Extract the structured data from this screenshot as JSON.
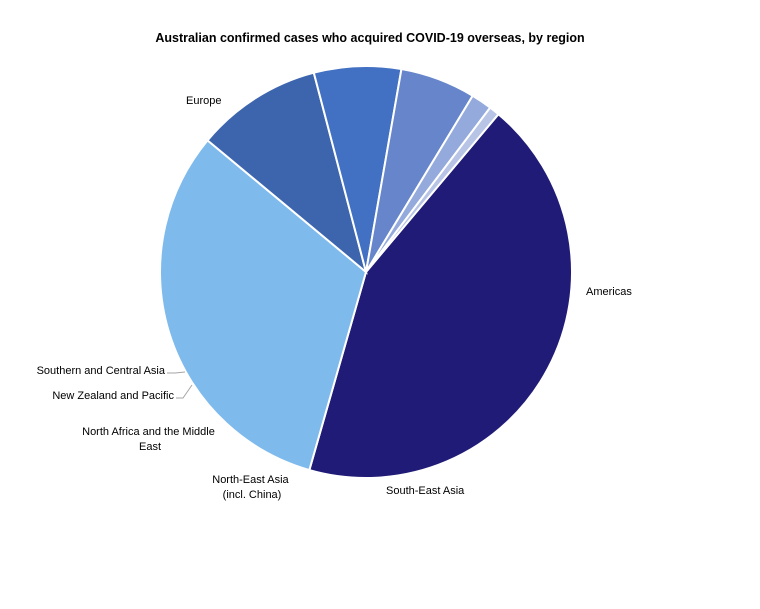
{
  "chart_data": {
    "type": "pie",
    "title": "Australian confirmed cases who acquired COVID-19 overseas, by region",
    "slices": [
      {
        "label": "Europe",
        "value": 42.5,
        "color": "#1f1b77"
      },
      {
        "label": "Americas",
        "value": 31.0,
        "color": "#7fbaed"
      },
      {
        "label": "South-East Asia",
        "value": 9.7,
        "color": "#3c65ae"
      },
      {
        "label": "North-East Asia (incl. China)",
        "value": 6.7,
        "color": "#4270c2"
      },
      {
        "label": "North Africa and the Middle East",
        "value": 5.8,
        "color": "#6685cb"
      },
      {
        "label": "New Zealand and Pacific",
        "value": 1.6,
        "color": "#94a9dc"
      },
      {
        "label": "Southern and Central Asia",
        "value": 0.8,
        "color": "#b7c4e6"
      }
    ],
    "start_angle_deg": 40,
    "direction": "clockwise"
  }
}
